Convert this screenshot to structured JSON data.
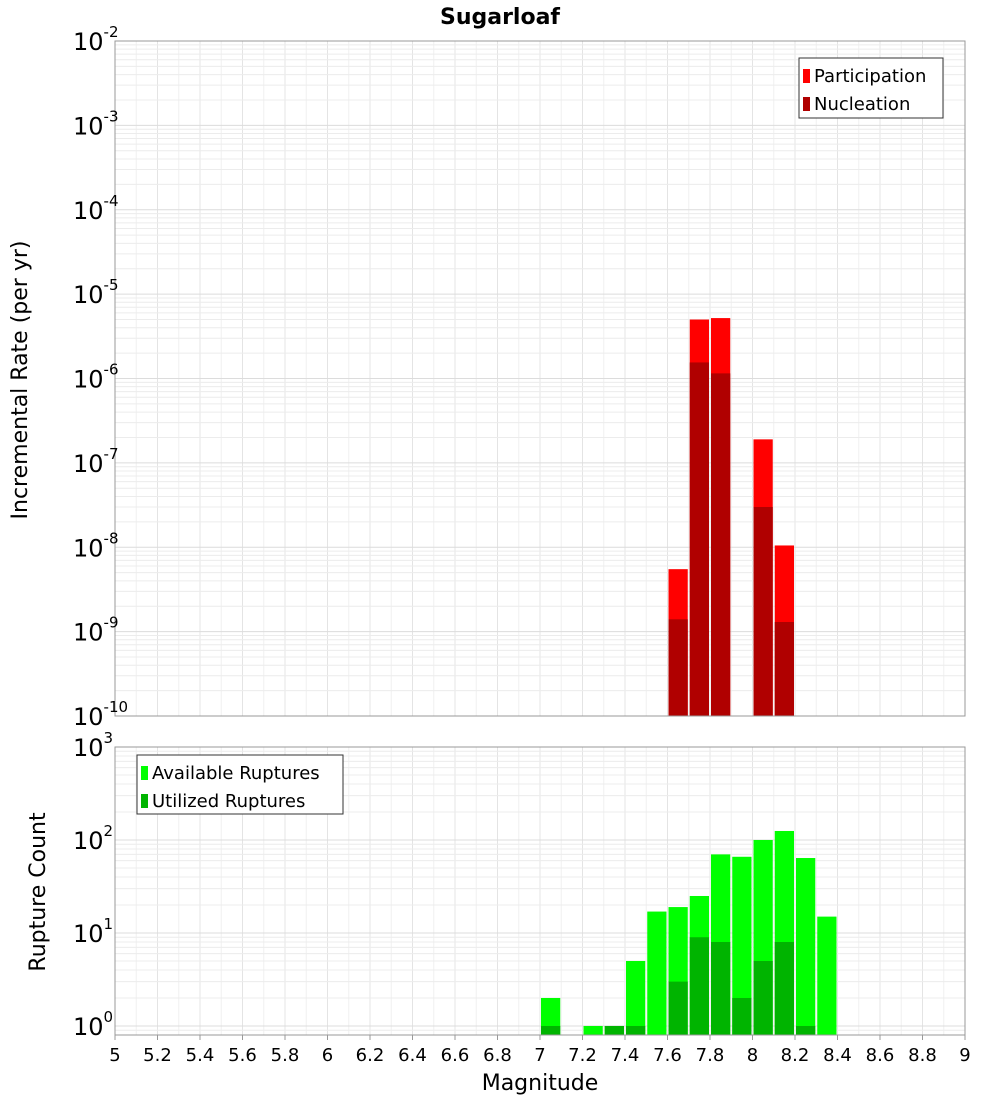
{
  "chart_data": [
    {
      "type": "bar",
      "title": "Sugarloaf",
      "xlabel": "",
      "ylabel": "Incremental Rate (per yr)",
      "yscale": "log",
      "ylim": [
        1e-10,
        0.01
      ],
      "xlim": [
        5,
        9
      ],
      "ytick_exponents": [
        "-2",
        "-3",
        "-4",
        "-5",
        "-6",
        "-7",
        "-8",
        "-9",
        "-10"
      ],
      "ytick_base": "10",
      "legend": {
        "position": "top-right",
        "entries": [
          "Participation",
          "Nucleation"
        ]
      },
      "colors": {
        "Participation": "#ff0000",
        "Nucleation": "#b00000"
      },
      "bin_width": 0.1,
      "x": [
        7.65,
        7.75,
        7.85,
        8.05,
        8.15
      ],
      "series": [
        {
          "name": "Participation",
          "values": [
            5.5e-09,
            5e-06,
            5.2e-06,
            1.9e-07,
            1.05e-08
          ]
        },
        {
          "name": "Nucleation",
          "values": [
            1.4e-09,
            1.55e-06,
            1.15e-06,
            3e-08,
            1.3e-09
          ]
        }
      ]
    },
    {
      "type": "bar",
      "title": "",
      "xlabel": "Magnitude",
      "ylabel": "Rupture Count",
      "yscale": "log",
      "ylim": [
        0.8,
        1000
      ],
      "xlim": [
        5,
        9
      ],
      "ytick_exponents": [
        "3",
        "2",
        "1",
        "0"
      ],
      "ytick_base": "10",
      "xticks": [
        "5",
        "5.2",
        "5.4",
        "5.6",
        "5.8",
        "6",
        "6.2",
        "6.4",
        "6.6",
        "6.8",
        "7",
        "7.2",
        "7.4",
        "7.6",
        "7.8",
        "8",
        "8.2",
        "8.4",
        "8.6",
        "8.8",
        "9"
      ],
      "legend": {
        "position": "top-left",
        "entries": [
          "Available Ruptures",
          "Utilized Ruptures"
        ]
      },
      "colors": {
        "Available Ruptures": "#00ff00",
        "Utilized Ruptures": "#00b400"
      },
      "bin_width": 0.1,
      "x": [
        7.05,
        7.25,
        7.35,
        7.45,
        7.55,
        7.65,
        7.75,
        7.85,
        7.95,
        8.05,
        8.15,
        8.25,
        8.35
      ],
      "series": [
        {
          "name": "Available Ruptures",
          "values": [
            2,
            1,
            1,
            5,
            17,
            19,
            25,
            70,
            66,
            100,
            125,
            64,
            15
          ]
        },
        {
          "name": "Utilized Ruptures",
          "values": [
            1,
            null,
            1,
            1,
            null,
            3,
            9,
            8,
            2,
            5,
            8,
            1,
            null
          ]
        }
      ]
    }
  ]
}
